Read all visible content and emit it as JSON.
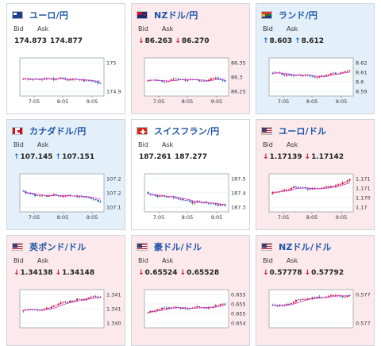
{
  "labels": {
    "bid": "Bid",
    "ask": "Ask"
  },
  "colors": {
    "up_arrow": "#1b6fd1",
    "down_arrow": "#d0102a",
    "candle_up": "#d0102a",
    "candle_down": "#1f56a8",
    "ma_line": "#cc33cc",
    "title": "#1f56a8"
  },
  "cards": [
    {
      "pair": "ユーロ/円",
      "flag": "eu-flag-icon",
      "bid": "174.873",
      "ask": "174.877",
      "dir": "none",
      "bg": "neutral",
      "chart": {
        "yticks": [
          "175",
          "174.9"
        ],
        "xticks": [
          "7:05",
          "8:05",
          "9:05"
        ]
      }
    },
    {
      "pair": "NZドル/円",
      "flag": "nz-flag-icon",
      "bid": "86.263",
      "ask": "86.270",
      "dir": "down",
      "bg": "down",
      "chart": {
        "yticks": [
          "86.35",
          "86.3",
          "86.25"
        ],
        "xticks": [
          "7:05",
          "8:05",
          "9:05"
        ]
      }
    },
    {
      "pair": "ランド/円",
      "flag": "za-flag-icon",
      "bid": "8.603",
      "ask": "8.612",
      "dir": "up",
      "bg": "up",
      "chart": {
        "yticks": [
          "8.62",
          "8.61",
          "8.6",
          "8.59"
        ],
        "xticks": [
          "7:05",
          "8:05",
          "9:05"
        ]
      }
    },
    {
      "pair": "カナダドル/円",
      "flag": "ca-flag-icon",
      "bid": "107.145",
      "ask": "107.151",
      "dir": "up",
      "bg": "up",
      "chart": {
        "yticks": [
          "107.25",
          "107.2",
          "107.15"
        ],
        "xticks": [
          "7:05",
          "8:05",
          "9:05"
        ]
      }
    },
    {
      "pair": "スイスフラン/円",
      "flag": "ch-flag-icon",
      "bid": "187.261",
      "ask": "187.277",
      "dir": "none",
      "bg": "neutral",
      "chart": {
        "yticks": [
          "187.5",
          "187.4",
          "187.3"
        ],
        "xticks": [
          "7:05",
          "8:05",
          "9:05"
        ]
      }
    },
    {
      "pair": "ユーロ/ドル",
      "flag": "us-flag-icon",
      "bid": "1.17139",
      "ask": "1.17142",
      "dir": "down",
      "bg": "down",
      "chart": {
        "yticks": [
          "1.1715",
          "1.171",
          "1.1705",
          "1.17"
        ],
        "xticks": [
          "7:05",
          "8:05",
          "9:05"
        ]
      }
    },
    {
      "pair": "英ポンド/ドル",
      "flag": "us-flag-icon",
      "bid": "1.34138",
      "ask": "1.34148",
      "dir": "down",
      "bg": "down",
      "chart": {
        "yticks": [
          "1.3415",
          "1.341",
          "1.3405"
        ],
        "xticks": []
      }
    },
    {
      "pair": "豪ドル/ドル",
      "flag": "us-flag-icon",
      "bid": "0.65524",
      "ask": "0.65528",
      "dir": "down",
      "bg": "down",
      "chart": {
        "yticks": [
          "0.6554",
          "0.6552",
          "0.655",
          "0.6548"
        ],
        "xticks": []
      }
    },
    {
      "pair": "NZドル/ドル",
      "flag": "us-flag-icon",
      "bid": "0.57778",
      "ask": "0.57792",
      "dir": "down",
      "bg": "down",
      "chart": {
        "yticks": [
          "0.5778",
          "0.5776"
        ],
        "xticks": []
      }
    }
  ]
}
